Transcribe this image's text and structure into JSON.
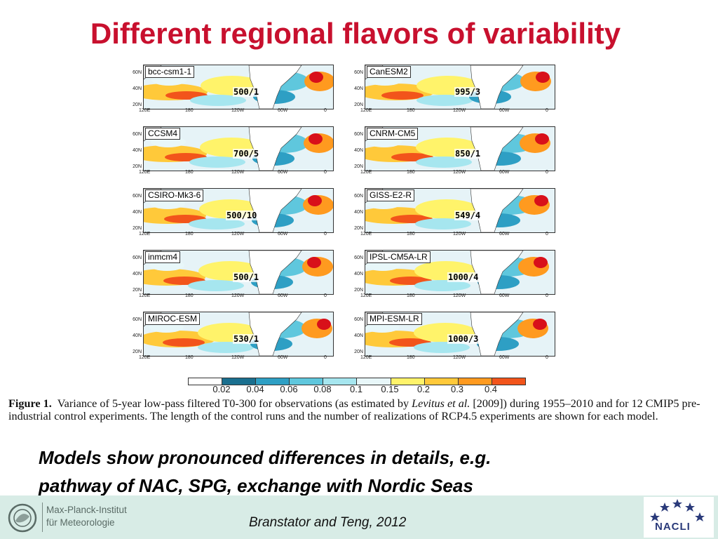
{
  "slide": {
    "title": "Different regional flavors of variability",
    "summary_line1": "Models show pronounced differences in details, e.g.",
    "summary_line2": "pathway of NAC, SPG, exchange with Nordic Seas",
    "citation": "Branstator and Teng, 2012"
  },
  "figure": {
    "lat_labels": [
      "60N",
      "40N",
      "20N"
    ],
    "lon_labels": [
      "120E",
      "180",
      "120W",
      "60W",
      "0"
    ],
    "panels": [
      {
        "name": "bcc-csm1-1",
        "ratio": "500/1"
      },
      {
        "name": "CanESM2",
        "ratio": "995/3"
      },
      {
        "name": "CCSM4",
        "ratio": "700/5"
      },
      {
        "name": "CNRM-CM5",
        "ratio": "850/1"
      },
      {
        "name": "CSIRO-Mk3-6",
        "ratio": "500/10"
      },
      {
        "name": "GISS-E2-R",
        "ratio": "549/4"
      },
      {
        "name": "inmcm4",
        "ratio": "500/1"
      },
      {
        "name": "IPSL-CM5A-LR",
        "ratio": "1000/4"
      },
      {
        "name": "MIROC-ESM",
        "ratio": "530/1"
      },
      {
        "name": "MPI-ESM-LR",
        "ratio": "1000/3"
      }
    ],
    "colorbar": {
      "labels": [
        "0.02",
        "0.04",
        "0.06",
        "0.08",
        "0.1",
        "0.15",
        "0.2",
        "0.3",
        "0.4"
      ],
      "colors": [
        "#ffffff",
        "#1a6f8f",
        "#2e9fc4",
        "#5fc7dd",
        "#a6e6ef",
        "#e8f7f9",
        "#fff36a",
        "#ffc93a",
        "#ff9a1f",
        "#f2541b",
        "#d8101a"
      ]
    },
    "caption_label": "Figure 1.",
    "caption_part1": "Variance of 5-year low-pass filtered T0-300 for observations (as estimated by ",
    "caption_italic": "Levitus et al.",
    "caption_part2": " [2009]) during 1955–2010 and for 12 CMIP5 pre-industrial control experiments. The length of the control runs and the number of realizations of RCP4.5 experiments are shown for each model."
  },
  "footer": {
    "institute_line1": "Max-Planck-Institut",
    "institute_line2": "für Meteorologie",
    "nacli": "NACLI"
  }
}
